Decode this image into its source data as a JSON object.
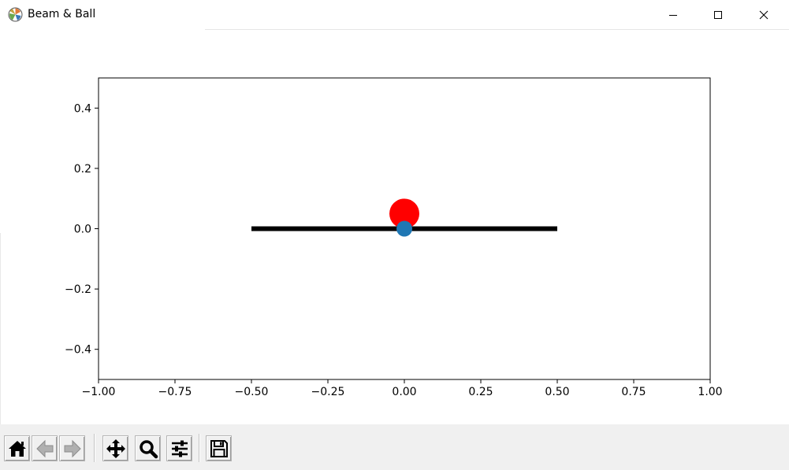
{
  "window": {
    "title": "Beam & Ball",
    "icon": "matplotlib-icon",
    "controls": {
      "minimize": "minimize-icon",
      "maximize": "maximize-icon",
      "close": "close-icon"
    }
  },
  "toolbar": {
    "buttons": [
      {
        "name": "home-button",
        "icon": "home-icon"
      },
      {
        "name": "back-button",
        "icon": "arrow-left-icon"
      },
      {
        "name": "forward-button",
        "icon": "arrow-right-icon"
      },
      {
        "name": "pan-button",
        "icon": "move-icon"
      },
      {
        "name": "zoom-button",
        "icon": "magnifier-icon"
      },
      {
        "name": "subplots-button",
        "icon": "sliders-icon"
      },
      {
        "name": "save-button",
        "icon": "floppy-disk-icon"
      }
    ]
  },
  "chart_data": {
    "type": "scatter",
    "xlim": [
      -1.0,
      1.0
    ],
    "ylim": [
      -0.5,
      0.5
    ],
    "xticks": [
      -1.0,
      -0.75,
      -0.5,
      -0.25,
      0.0,
      0.25,
      0.5,
      0.75,
      1.0
    ],
    "xtick_labels": [
      "−1.00",
      "−0.75",
      "−0.50",
      "−0.25",
      "0.00",
      "0.25",
      "0.50",
      "0.75",
      "1.00"
    ],
    "yticks": [
      -0.4,
      -0.2,
      0.0,
      0.2,
      0.4
    ],
    "ytick_labels": [
      "−0.4",
      "−0.2",
      "0.0",
      "0.2",
      "0.4"
    ],
    "grid": false,
    "series": [
      {
        "kind": "line",
        "x": [
          -0.5,
          0.5
        ],
        "y": [
          0.0,
          0.0
        ],
        "color": "#000000"
      },
      {
        "kind": "point",
        "x": [
          0.0
        ],
        "y": [
          0.05
        ],
        "color": "#ff0000"
      },
      {
        "kind": "point",
        "x": [
          0.0
        ],
        "y": [
          0.0
        ],
        "color": "#1f77b4"
      }
    ]
  }
}
